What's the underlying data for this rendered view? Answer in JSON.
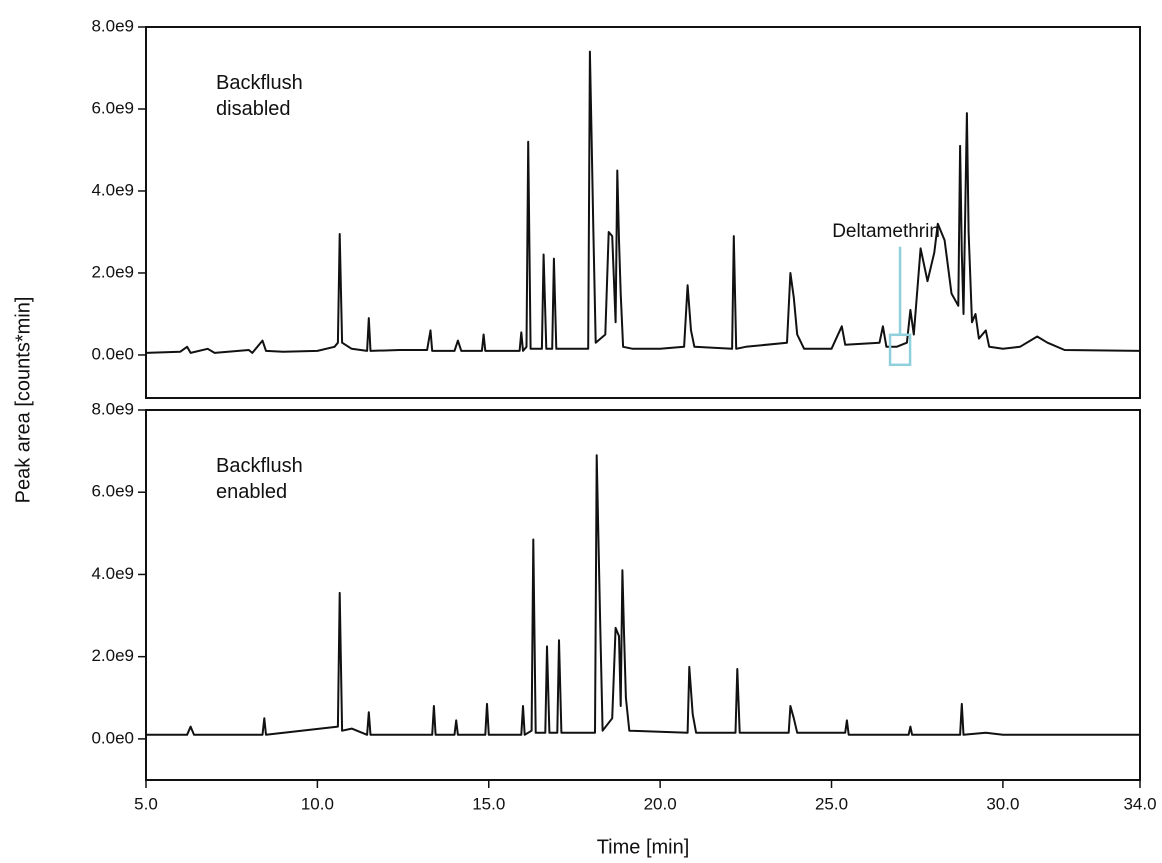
{
  "chart_data": [
    {
      "type": "line",
      "color": "#111111",
      "label_lines": [
        "Backflush",
        "disabled"
      ],
      "ylabel": "Peak area [counts*min]",
      "annotation": {
        "text": "Deltamethrin",
        "x": 27.0,
        "y": 150000000.0,
        "color": "#8fd0dc"
      },
      "xlim": [
        5,
        34
      ],
      "ylim": [
        -1050000000.0,
        8000000000.0
      ],
      "yticks": [
        {
          "value": 0,
          "label": "0.0e0"
        },
        {
          "value": 2000000000.0,
          "label": "2.0e9"
        },
        {
          "value": 4000000000.0,
          "label": "4.0e9"
        },
        {
          "value": 6000000000.0,
          "label": "6.0e9"
        },
        {
          "value": 8000000000.0,
          "label": "8.0e9"
        }
      ],
      "x": [
        5.0,
        6.0,
        6.2,
        6.3,
        6.8,
        7.0,
        8.0,
        8.1,
        8.4,
        8.5,
        9.0,
        10.0,
        10.5,
        10.6,
        10.65,
        10.72,
        11.0,
        11.45,
        11.5,
        11.55,
        12.4,
        13.2,
        13.3,
        13.35,
        14.0,
        14.1,
        14.2,
        14.8,
        14.85,
        14.9,
        15.9,
        15.95,
        16.0,
        16.1,
        16.15,
        16.22,
        16.55,
        16.6,
        16.68,
        16.85,
        16.9,
        16.97,
        17.9,
        17.95,
        18.0,
        18.05,
        18.12,
        18.4,
        18.5,
        18.6,
        18.7,
        18.75,
        18.8,
        18.85,
        18.92,
        19.2,
        20.0,
        20.7,
        20.8,
        20.9,
        21.0,
        22.1,
        22.15,
        22.22,
        22.5,
        23.7,
        23.8,
        23.9,
        24.0,
        24.2,
        25.0,
        25.3,
        25.4,
        26.4,
        26.5,
        26.6,
        26.9,
        27.2,
        27.3,
        27.4,
        27.6,
        27.8,
        28.0,
        28.1,
        28.3,
        28.5,
        28.7,
        28.75,
        28.8,
        28.85,
        28.95,
        29.0,
        29.1,
        29.2,
        29.3,
        29.5,
        29.6,
        30.0,
        30.5,
        31.0,
        31.3,
        31.8,
        34.0
      ],
      "values": [
        50000000.0,
        80000000.0,
        200000000.0,
        50000000.0,
        150000000.0,
        50000000.0,
        120000000.0,
        50000000.0,
        350000000.0,
        100000000.0,
        80000000.0,
        100000000.0,
        200000000.0,
        300000000.0,
        2950000000.0,
        300000000.0,
        150000000.0,
        100000000.0,
        900000000.0,
        100000000.0,
        120000000.0,
        120000000.0,
        600000000.0,
        100000000.0,
        100000000.0,
        350000000.0,
        100000000.0,
        100000000.0,
        500000000.0,
        100000000.0,
        100000000.0,
        550000000.0,
        100000000.0,
        200000000.0,
        5200000000.0,
        150000000.0,
        150000000.0,
        2450000000.0,
        150000000.0,
        150000000.0,
        2350000000.0,
        150000000.0,
        150000000.0,
        7400000000.0,
        5300000000.0,
        3100000000.0,
        300000000.0,
        500000000.0,
        3000000000.0,
        2900000000.0,
        800000000.0,
        4500000000.0,
        2800000000.0,
        1500000000.0,
        200000000.0,
        150000000.0,
        150000000.0,
        200000000.0,
        1700000000.0,
        600000000.0,
        200000000.0,
        150000000.0,
        2900000000.0,
        150000000.0,
        200000000.0,
        300000000.0,
        2000000000.0,
        1400000000.0,
        500000000.0,
        150000000.0,
        150000000.0,
        700000000.0,
        250000000.0,
        300000000.0,
        700000000.0,
        200000000.0,
        200000000.0,
        300000000.0,
        1100000000.0,
        500000000.0,
        2600000000.0,
        1800000000.0,
        2500000000.0,
        3200000000.0,
        2800000000.0,
        1500000000.0,
        1200000000.0,
        5100000000.0,
        2500000000.0,
        1000000000.0,
        5900000000.0,
        3000000000.0,
        800000000.0,
        1000000000.0,
        400000000.0,
        600000000.0,
        200000000.0,
        150000000.0,
        200000000.0,
        450000000.0,
        300000000.0,
        120000000.0,
        100000000.0
      ]
    },
    {
      "type": "line",
      "color": "#111111",
      "label_lines": [
        "Backflush",
        "enabled"
      ],
      "xlabel": "Time [min]",
      "xlim": [
        5,
        34
      ],
      "ylim": [
        -1000000000.0,
        8000000000.0
      ],
      "xticks": [
        {
          "value": 5,
          "label": "5.0"
        },
        {
          "value": 10,
          "label": "10.0"
        },
        {
          "value": 15,
          "label": "15.0"
        },
        {
          "value": 20,
          "label": "20.0"
        },
        {
          "value": 25,
          "label": "25.0"
        },
        {
          "value": 30,
          "label": "30.0"
        },
        {
          "value": 34,
          "label": "34.0"
        }
      ],
      "yticks": [
        {
          "value": 0,
          "label": "0.0e0"
        },
        {
          "value": 2000000000.0,
          "label": "2.0e9"
        },
        {
          "value": 4000000000.0,
          "label": "4.0e9"
        },
        {
          "value": 6000000000.0,
          "label": "6.0e9"
        },
        {
          "value": 8000000000.0,
          "label": "8.0e9"
        }
      ],
      "x": [
        5.0,
        6.2,
        6.3,
        6.4,
        8.4,
        8.45,
        8.5,
        10.6,
        10.65,
        10.72,
        11.0,
        11.45,
        11.5,
        11.55,
        13.35,
        13.4,
        13.45,
        14.0,
        14.05,
        14.1,
        14.9,
        14.95,
        15.0,
        15.95,
        16.0,
        16.05,
        16.25,
        16.3,
        16.37,
        16.65,
        16.7,
        16.77,
        17.0,
        17.05,
        17.12,
        18.1,
        18.15,
        18.2,
        18.25,
        18.32,
        18.6,
        18.7,
        18.8,
        18.85,
        18.9,
        18.95,
        19.0,
        19.1,
        20.8,
        20.85,
        20.95,
        21.05,
        22.2,
        22.25,
        22.32,
        23.75,
        23.8,
        23.9,
        24.0,
        25.4,
        25.45,
        25.5,
        27.25,
        27.3,
        27.35,
        28.75,
        28.8,
        28.85,
        29.5,
        30.0,
        34.0
      ],
      "values": [
        100000000.0,
        100000000.0,
        300000000.0,
        100000000.0,
        100000000.0,
        500000000.0,
        100000000.0,
        300000000.0,
        3550000000.0,
        200000000.0,
        250000000.0,
        100000000.0,
        650000000.0,
        100000000.0,
        100000000.0,
        800000000.0,
        100000000.0,
        100000000.0,
        450000000.0,
        100000000.0,
        100000000.0,
        850000000.0,
        100000000.0,
        100000000.0,
        800000000.0,
        100000000.0,
        200000000.0,
        4850000000.0,
        150000000.0,
        150000000.0,
        2250000000.0,
        150000000.0,
        150000000.0,
        2400000000.0,
        150000000.0,
        150000000.0,
        6900000000.0,
        4900000000.0,
        2800000000.0,
        200000000.0,
        500000000.0,
        2700000000.0,
        2500000000.0,
        800000000.0,
        4100000000.0,
        2500000000.0,
        1000000000.0,
        200000000.0,
        150000000.0,
        1750000000.0,
        600000000.0,
        150000000.0,
        150000000.0,
        1700000000.0,
        150000000.0,
        150000000.0,
        800000000.0,
        500000000.0,
        150000000.0,
        150000000.0,
        450000000.0,
        100000000.0,
        100000000.0,
        300000000.0,
        100000000.0,
        100000000.0,
        850000000.0,
        100000000.0,
        150000000.0,
        100000000.0,
        100000000.0
      ]
    }
  ]
}
